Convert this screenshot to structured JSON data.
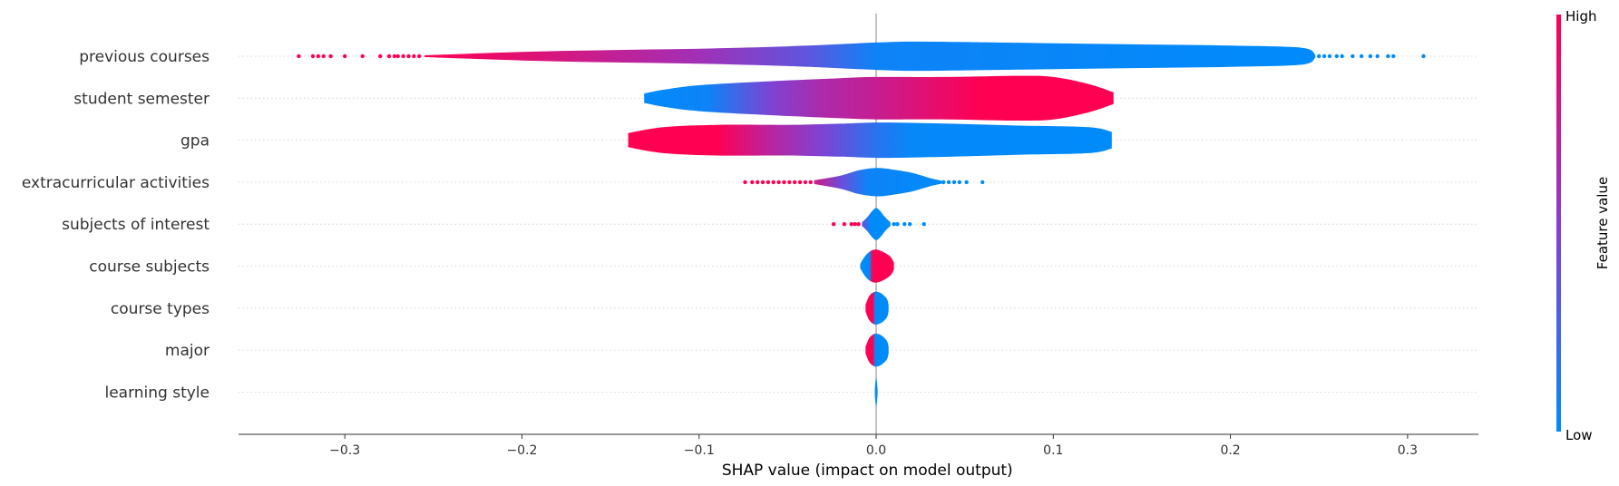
{
  "chart_data": {
    "type": "violin",
    "xlabel": "SHAP value (impact on model output)",
    "xlim": [
      -0.36,
      0.34
    ],
    "xticks": [
      -0.3,
      -0.2,
      -0.1,
      0.0,
      0.1,
      0.2,
      0.3
    ],
    "xtick_labels": [
      "−0.3",
      "−0.2",
      "−0.1",
      "0.0",
      "0.1",
      "0.2",
      "0.3"
    ],
    "colors": {
      "low": "#008bfb",
      "mid": "#8a3cd0",
      "high": "#ff0052"
    },
    "colorbar": {
      "high_label": "High",
      "low_label": "Low",
      "title": "Feature value"
    },
    "features": [
      {
        "name": "previous courses",
        "violin": [
          [
            -0.255,
            0.04
          ],
          [
            -0.2,
            0.18
          ],
          [
            -0.15,
            0.26
          ],
          [
            -0.1,
            0.32
          ],
          [
            -0.05,
            0.42
          ],
          [
            -0.01,
            0.55
          ],
          [
            0.0,
            0.58
          ],
          [
            0.02,
            0.62
          ],
          [
            0.05,
            0.6
          ],
          [
            0.1,
            0.55
          ],
          [
            0.15,
            0.5
          ],
          [
            0.2,
            0.45
          ],
          [
            0.24,
            0.36
          ],
          [
            0.248,
            0.06
          ]
        ],
        "color_stops": [
          [
            -0.255,
            1.0
          ],
          [
            -0.18,
            0.82
          ],
          [
            -0.1,
            0.6
          ],
          [
            -0.04,
            0.35
          ],
          [
            0.0,
            0.05
          ],
          [
            0.248,
            0.0
          ]
        ],
        "dots": [
          {
            "x": -0.326,
            "c": 1
          },
          {
            "x": -0.318,
            "c": 1
          },
          {
            "x": -0.315,
            "c": 1
          },
          {
            "x": -0.312,
            "c": 1
          },
          {
            "x": -0.308,
            "c": 1
          },
          {
            "x": -0.3,
            "c": 1
          },
          {
            "x": -0.29,
            "c": 1
          },
          {
            "x": -0.28,
            "c": 1
          },
          {
            "x": -0.275,
            "c": 1
          },
          {
            "x": -0.272,
            "c": 1
          },
          {
            "x": -0.27,
            "c": 1
          },
          {
            "x": -0.267,
            "c": 1
          },
          {
            "x": -0.264,
            "c": 1
          },
          {
            "x": -0.261,
            "c": 1
          },
          {
            "x": -0.258,
            "c": 1
          },
          {
            "x": 0.25,
            "c": 0
          },
          {
            "x": 0.253,
            "c": 0
          },
          {
            "x": 0.256,
            "c": 0
          },
          {
            "x": 0.26,
            "c": 0
          },
          {
            "x": 0.263,
            "c": 0
          },
          {
            "x": 0.269,
            "c": 0
          },
          {
            "x": 0.274,
            "c": 0
          },
          {
            "x": 0.279,
            "c": 0
          },
          {
            "x": 0.283,
            "c": 0
          },
          {
            "x": 0.289,
            "c": 0
          },
          {
            "x": 0.292,
            "c": 0
          },
          {
            "x": 0.309,
            "c": 0
          }
        ]
      },
      {
        "name": "student semester",
        "violin": [
          [
            -0.131,
            0.2
          ],
          [
            -0.12,
            0.36
          ],
          [
            -0.1,
            0.55
          ],
          [
            -0.06,
            0.72
          ],
          [
            -0.02,
            0.85
          ],
          [
            0.0,
            0.9
          ],
          [
            0.04,
            0.9
          ],
          [
            0.08,
            0.95
          ],
          [
            0.1,
            0.9
          ],
          [
            0.12,
            0.6
          ],
          [
            0.134,
            0.25
          ]
        ],
        "color_stops": [
          [
            -0.131,
            0.0
          ],
          [
            -0.095,
            0.05
          ],
          [
            -0.06,
            0.45
          ],
          [
            -0.03,
            0.65
          ],
          [
            0.0,
            0.75
          ],
          [
            0.035,
            0.9
          ],
          [
            0.06,
            1.0
          ],
          [
            0.134,
            1.0
          ]
        ],
        "dots": []
      },
      {
        "name": "gpa",
        "violin": [
          [
            -0.14,
            0.3
          ],
          [
            -0.12,
            0.55
          ],
          [
            -0.09,
            0.65
          ],
          [
            -0.05,
            0.65
          ],
          [
            -0.02,
            0.7
          ],
          [
            0.0,
            0.75
          ],
          [
            0.03,
            0.72
          ],
          [
            0.08,
            0.62
          ],
          [
            0.12,
            0.55
          ],
          [
            0.133,
            0.35
          ]
        ],
        "color_stops": [
          [
            -0.14,
            1.0
          ],
          [
            -0.09,
            1.0
          ],
          [
            -0.06,
            0.7
          ],
          [
            -0.03,
            0.45
          ],
          [
            0.0,
            0.15
          ],
          [
            0.02,
            0.02
          ],
          [
            0.133,
            0.0
          ]
        ],
        "dots": []
      },
      {
        "name": "extracurricular activities",
        "violin": [
          [
            -0.035,
            0.08
          ],
          [
            -0.02,
            0.28
          ],
          [
            -0.01,
            0.5
          ],
          [
            0.0,
            0.6
          ],
          [
            0.008,
            0.55
          ],
          [
            0.02,
            0.4
          ],
          [
            0.03,
            0.18
          ],
          [
            0.037,
            0.06
          ]
        ],
        "color_stops": [
          [
            -0.035,
            0.8
          ],
          [
            -0.02,
            0.4
          ],
          [
            -0.005,
            0.05
          ],
          [
            0.037,
            0.0
          ]
        ],
        "dots": [
          {
            "x": -0.074,
            "c": 1
          },
          {
            "x": -0.07,
            "c": 1
          },
          {
            "x": -0.067,
            "c": 1
          },
          {
            "x": -0.064,
            "c": 1
          },
          {
            "x": -0.061,
            "c": 1
          },
          {
            "x": -0.058,
            "c": 1
          },
          {
            "x": -0.055,
            "c": 1
          },
          {
            "x": -0.052,
            "c": 1
          },
          {
            "x": -0.049,
            "c": 1
          },
          {
            "x": -0.046,
            "c": 1
          },
          {
            "x": -0.043,
            "c": 1
          },
          {
            "x": -0.04,
            "c": 1
          },
          {
            "x": -0.037,
            "c": 1
          },
          {
            "x": 0.032,
            "c": 0
          },
          {
            "x": 0.035,
            "c": 0
          },
          {
            "x": 0.038,
            "c": 0
          },
          {
            "x": 0.041,
            "c": 0
          },
          {
            "x": 0.044,
            "c": 0
          },
          {
            "x": 0.047,
            "c": 0
          },
          {
            "x": 0.051,
            "c": 0
          },
          {
            "x": 0.06,
            "c": 0
          }
        ]
      },
      {
        "name": "subjects of interest",
        "violin": [
          [
            -0.008,
            0.08
          ],
          [
            -0.005,
            0.3
          ],
          [
            -0.002,
            0.58
          ],
          [
            0.0,
            0.68
          ],
          [
            0.002,
            0.58
          ],
          [
            0.005,
            0.3
          ],
          [
            0.008,
            0.08
          ]
        ],
        "color_stops": [
          [
            -0.008,
            0.4
          ],
          [
            -0.003,
            0.0
          ],
          [
            0.008,
            0.0
          ]
        ],
        "dots": [
          {
            "x": -0.024,
            "c": 1
          },
          {
            "x": -0.018,
            "c": 1
          },
          {
            "x": -0.014,
            "c": 1
          },
          {
            "x": -0.012,
            "c": 1
          },
          {
            "x": -0.01,
            "c": 1
          },
          {
            "x": 0.01,
            "c": 0
          },
          {
            "x": 0.012,
            "c": 0
          },
          {
            "x": 0.016,
            "c": 0
          },
          {
            "x": 0.019,
            "c": 0
          },
          {
            "x": 0.027,
            "c": 0
          }
        ]
      },
      {
        "name": "course subjects",
        "violin": [
          [
            -0.009,
            0.1
          ],
          [
            -0.006,
            0.45
          ],
          [
            -0.003,
            0.65
          ],
          [
            0.0,
            0.7
          ],
          [
            0.004,
            0.6
          ],
          [
            0.008,
            0.4
          ],
          [
            0.01,
            0.15
          ]
        ],
        "color_stops": [
          [
            -0.009,
            0.0
          ],
          [
            -0.004,
            0.0
          ],
          [
            -0.002,
            1.0
          ],
          [
            0.01,
            1.0
          ]
        ],
        "dots": []
      },
      {
        "name": "course types",
        "violin": [
          [
            -0.006,
            0.15
          ],
          [
            -0.004,
            0.5
          ],
          [
            -0.002,
            0.65
          ],
          [
            0.0,
            0.7
          ],
          [
            0.003,
            0.62
          ],
          [
            0.006,
            0.4
          ],
          [
            0.007,
            0.15
          ]
        ],
        "color_stops": [
          [
            -0.006,
            1.0
          ],
          [
            -0.002,
            1.0
          ],
          [
            -0.0005,
            0.0
          ],
          [
            0.007,
            0.0
          ]
        ],
        "dots": []
      },
      {
        "name": "major",
        "violin": [
          [
            -0.006,
            0.15
          ],
          [
            -0.004,
            0.5
          ],
          [
            -0.002,
            0.65
          ],
          [
            0.0,
            0.7
          ],
          [
            0.003,
            0.62
          ],
          [
            0.006,
            0.4
          ],
          [
            0.007,
            0.15
          ]
        ],
        "color_stops": [
          [
            -0.006,
            1.0
          ],
          [
            -0.002,
            1.0
          ],
          [
            -0.0005,
            0.0
          ],
          [
            0.007,
            0.0
          ]
        ],
        "dots": []
      },
      {
        "name": "learning style",
        "violin": [
          [
            -0.0008,
            0.1
          ],
          [
            -0.0004,
            0.45
          ],
          [
            0.0,
            0.6
          ],
          [
            0.0004,
            0.45
          ],
          [
            0.0008,
            0.1
          ]
        ],
        "color_stops": [
          [
            -0.0008,
            0.0
          ],
          [
            0.0008,
            0.0
          ]
        ],
        "dots": []
      }
    ]
  }
}
